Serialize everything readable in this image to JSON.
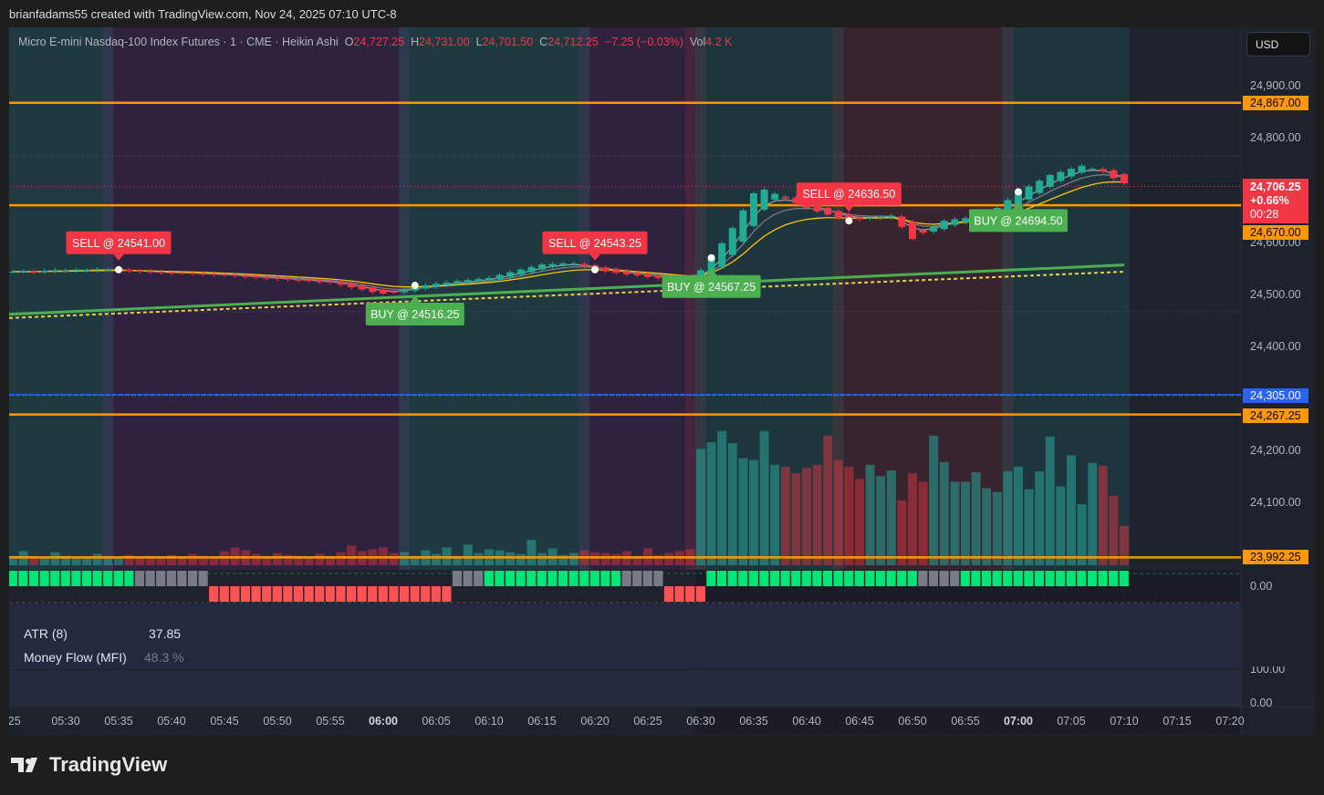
{
  "header": {
    "attribution": "brianfadams55 created with TradingView.com, Nov 24, 2025 07:10 UTC-8"
  },
  "legend": {
    "symbol": "Micro E-mini Nasdaq-100 Index Futures · 1 · CME · Heikin Ashi",
    "o_label": "O",
    "o": "24,727.25",
    "h_label": "H",
    "h": "24,731.00",
    "l_label": "L",
    "l": "24,701.50",
    "c_label": "C",
    "c": "24,712.25",
    "change": "−7.25 (−0.03%)",
    "vol_label": "Vol",
    "vol": "4.2 K"
  },
  "currency": "USD",
  "price_axis": [
    "24,900.00",
    "24,800.00",
    "24,600.00",
    "24,500.00",
    "24,400.00",
    "24,200.00",
    "24,100.00"
  ],
  "price_tags": {
    "current": "24,706.25",
    "change_pct": "+0.66%",
    "countdown": "00:28",
    "l1": "24,867.00",
    "l2": "24,670.00",
    "l3": "24,305.00",
    "l4": "24,267.25",
    "l5": "23,992.25"
  },
  "sub_axis": {
    "trend_zero": "0.00",
    "upper": "100.00",
    "lower": "0.00"
  },
  "indicators": {
    "atr_label": "ATR (8)",
    "atr_value": "37.85",
    "mfi_label": "Money Flow (MFI)",
    "mfi_value": "48.3 %"
  },
  "time_axis": [
    ":25",
    "05:30",
    "05:35",
    "05:40",
    "05:45",
    "05:50",
    "05:55",
    "06:00",
    "06:05",
    "06:10",
    "06:15",
    "06:20",
    "06:25",
    "06:30",
    "06:35",
    "06:40",
    "06:45",
    "06:50",
    "06:55",
    "07:00",
    "07:05",
    "07:10",
    "07:15",
    "07:20"
  ],
  "brand": "TradingView",
  "colors": {
    "up": "#22ab94",
    "down": "#f23645",
    "level": "#ff9800",
    "blue_level": "#2962ff",
    "buy": "#4caf50",
    "trend_up": "#00e676",
    "trend_flat": "#787b86",
    "trend_down": "#ff5252"
  },
  "chart_data": {
    "type": "candlestick",
    "style": "Heikin Ashi",
    "interval_minutes": 1,
    "start_time": "05:25",
    "end_time": "07:10",
    "ylim": [
      23960,
      24930
    ],
    "close": [
      24542,
      24543,
      24541,
      24544,
      24545,
      24544,
      24546,
      24545,
      24547,
      24546,
      24546,
      24543,
      24542,
      24541,
      24540,
      24539,
      24540,
      24538,
      24537,
      24536,
      24535,
      24534,
      24532,
      24531,
      24529,
      24528,
      24527,
      24525,
      24524,
      24522,
      24521,
      24517,
      24512,
      24508,
      24503,
      24500,
      24502,
      24508,
      24514,
      24516,
      24519,
      24521,
      24524,
      24526,
      24528,
      24530,
      24536,
      24541,
      24546,
      24551,
      24556,
      24557,
      24558,
      24558,
      24552,
      24546,
      24543,
      24540,
      24537,
      24535,
      24532,
      24530,
      24528,
      24526,
      24524,
      24545,
      24567,
      24597,
      24626,
      24660,
      24693,
      24700,
      24692,
      24683,
      24674,
      24665,
      24658,
      24652,
      24646,
      24640,
      24643,
      24646,
      24648,
      24650,
      24628,
      24605,
      24617,
      24629,
      24640,
      24643,
      24645,
      24648,
      24650,
      24665,
      24680,
      24694,
      24706,
      24717,
      24728,
      24734,
      24740,
      24746,
      24740,
      24735,
      24722,
      24712.25
    ],
    "volume_k": [
      1.0,
      1.5,
      0.8,
      0.9,
      1.4,
      1.0,
      0.8,
      0.9,
      1.2,
      1.0,
      0.9,
      1.1,
      0.9,
      1.0,
      0.8,
      1.1,
      0.9,
      1.2,
      1.0,
      0.8,
      1.5,
      1.9,
      1.6,
      1.2,
      1.0,
      1.3,
      1.1,
      1.0,
      0.8,
      1.2,
      1.0,
      1.4,
      2.1,
      1.5,
      1.7,
      1.9,
      1.3,
      1.4,
      1.0,
      1.6,
      1.2,
      1.9,
      1.0,
      2.2,
      1.3,
      1.7,
      1.6,
      1.4,
      1.2,
      2.7,
      1.3,
      1.8,
      1.1,
      1.3,
      1.6,
      1.4,
      1.3,
      1.2,
      1.5,
      1.0,
      1.8,
      1.1,
      1.3,
      1.5,
      1.7,
      12.4,
      13.1,
      14.3,
      13.0,
      11.4,
      11.2,
      14.3,
      10.7,
      10.5,
      9.8,
      10.4,
      10.7,
      13.8,
      11.2,
      10.5,
      9.2,
      10.7,
      9.5,
      10.1,
      6.9,
      9.8,
      8.9,
      13.8,
      11.0,
      8.9,
      8.9,
      9.9,
      8.2,
      7.8,
      10.0,
      10.5,
      8.1,
      10.0,
      13.7,
      8.4,
      11.7,
      6.5,
      10.9,
      10.6,
      7.4,
      4.2
    ],
    "levels": [
      {
        "price": 24867,
        "color": "#ff9800"
      },
      {
        "price": 24670,
        "color": "#ff9800"
      },
      {
        "price": 24305,
        "color": "#2962ff"
      },
      {
        "price": 24267.25,
        "color": "#ff9800"
      },
      {
        "price": 23992.25,
        "color": "#ff9800"
      }
    ],
    "current_price": 24706.25,
    "long_ma": {
      "start": 24460,
      "end": 24555,
      "color": "#4caf50"
    },
    "long_ma_dashed": {
      "start": 24453,
      "end": 24542,
      "color": "#e5d34a"
    },
    "signals": [
      {
        "type": "SELL",
        "time": "05:35",
        "label": "SELL @ 24541.00"
      },
      {
        "type": "BUY",
        "time": "06:03",
        "label": "BUY @ 24516.25"
      },
      {
        "type": "SELL",
        "time": "06:20",
        "label": "SELL @ 24543.25"
      },
      {
        "type": "BUY",
        "time": "06:31",
        "label": "BUY @ 24567.25"
      },
      {
        "type": "SELL",
        "time": "06:44",
        "label": "SELL @ 24636.50"
      },
      {
        "type": "BUY",
        "time": "07:00",
        "label": "BUY @ 24694.50"
      }
    ],
    "regimes": [
      {
        "from": "05:25",
        "to": "05:34",
        "state": "bull"
      },
      {
        "from": "05:34",
        "to": "06:02",
        "state": "bear"
      },
      {
        "from": "06:02",
        "to": "06:19",
        "state": "bull"
      },
      {
        "from": "06:19",
        "to": "06:29",
        "state": "bear"
      },
      {
        "from": "06:29",
        "to": "06:30",
        "state": "strong-bear"
      },
      {
        "from": "06:30",
        "to": "06:43",
        "state": "strong-bull"
      },
      {
        "from": "06:43",
        "to": "06:59",
        "state": "strong-bear"
      },
      {
        "from": "06:59",
        "to": "07:10",
        "state": "strong-bull"
      }
    ],
    "trend_strip": [
      {
        "from": "05:25",
        "to": "05:36",
        "state": "up"
      },
      {
        "from": "05:37",
        "to": "05:43",
        "state": "flat"
      },
      {
        "from": "05:44",
        "to": "06:06",
        "state": "down"
      },
      {
        "from": "06:07",
        "to": "06:09",
        "state": "flat"
      },
      {
        "from": "06:10",
        "to": "06:22",
        "state": "up"
      },
      {
        "from": "06:23",
        "to": "06:26",
        "state": "flat"
      },
      {
        "from": "06:27",
        "to": "06:30",
        "state": "down"
      },
      {
        "from": "06:31",
        "to": "06:50",
        "state": "up"
      },
      {
        "from": "06:51",
        "to": "06:54",
        "state": "flat"
      },
      {
        "from": "06:55",
        "to": "07:10",
        "state": "up"
      }
    ]
  }
}
